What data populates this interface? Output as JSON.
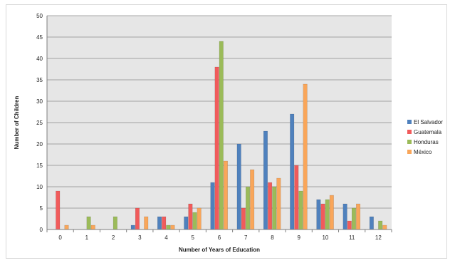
{
  "chart_data": {
    "type": "bar",
    "title": "",
    "xlabel": "Number of Years of Education",
    "ylabel": "Number of Children",
    "categories": [
      "0",
      "1",
      "2",
      "3",
      "4",
      "5",
      "6",
      "7",
      "8",
      "9",
      "10",
      "11",
      "12"
    ],
    "ylim": [
      0,
      50
    ],
    "yticks": [
      0,
      5,
      10,
      15,
      20,
      25,
      30,
      35,
      40,
      45,
      50
    ],
    "grid": true,
    "legend_position": "right",
    "series": [
      {
        "name": "El Salvador",
        "color": "#4f81bd",
        "values": [
          0,
          0,
          0,
          1,
          3,
          3,
          11,
          20,
          23,
          27,
          7,
          6,
          3
        ]
      },
      {
        "name": "Guatemala",
        "color": "#f15b5b",
        "values": [
          9,
          0,
          0,
          5,
          3,
          6,
          38,
          5,
          11,
          15,
          6,
          2,
          0
        ]
      },
      {
        "name": "Honduras",
        "color": "#9bbb59",
        "values": [
          0,
          3,
          3,
          0,
          1,
          4,
          44,
          10,
          10,
          9,
          7,
          5,
          2
        ]
      },
      {
        "name": "México",
        "color": "#f9a65a",
        "values": [
          1,
          1,
          0,
          3,
          1,
          5,
          16,
          14,
          12,
          34,
          8,
          6,
          1
        ]
      }
    ]
  }
}
